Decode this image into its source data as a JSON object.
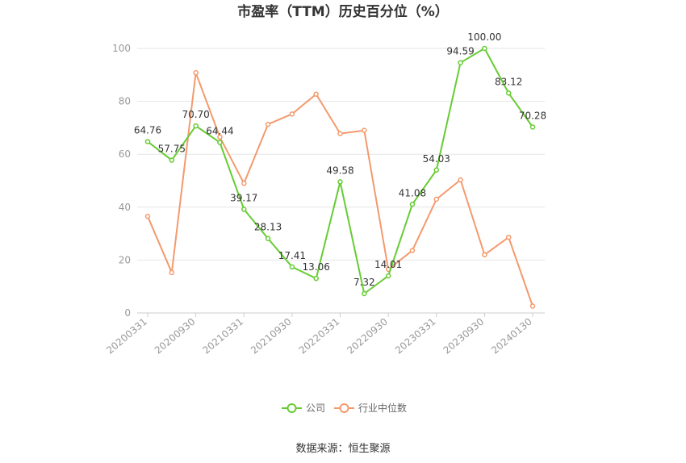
{
  "chart_data": {
    "type": "line",
    "title": "市盈率（TTM）历史百分位（%）",
    "xlabel": "",
    "ylabel": "",
    "ylim": [
      0,
      100
    ],
    "yticks": [
      0,
      20,
      40,
      60,
      80,
      100
    ],
    "x": [
      "20200331",
      "20200630",
      "20200930",
      "20201231",
      "20210331",
      "20210630",
      "20210930",
      "20211231",
      "20220331",
      "20220630",
      "20220930",
      "20221231",
      "20230331",
      "20230630",
      "20230930",
      "20231231",
      "20240130"
    ],
    "xticks_shown": [
      "20200331",
      "20200930",
      "20210331",
      "20210930",
      "20220331",
      "20220930",
      "20230331",
      "20230930",
      "20240130"
    ],
    "grid": true,
    "legend_position": "bottom",
    "series": [
      {
        "name": "公司",
        "color": "#66cc33",
        "values": [
          64.76,
          57.75,
          70.7,
          64.44,
          39.17,
          28.13,
          17.41,
          13.06,
          49.58,
          7.32,
          14.01,
          41.08,
          54.03,
          94.59,
          100.0,
          83.12,
          70.28
        ],
        "labels": [
          "64.76",
          "57.75",
          "70.70",
          "64.44",
          "39.17",
          "28.13",
          "17.41",
          "13.06",
          "49.58",
          "7.32",
          "14.01",
          "41.08",
          "54.03",
          "94.59",
          "100.00",
          "83.12",
          "70.28"
        ]
      },
      {
        "name": "行业中位数",
        "color": "#f39a6e",
        "values": [
          36.5,
          15.3,
          90.8,
          66.5,
          49.0,
          71.3,
          75.2,
          82.7,
          67.8,
          69.0,
          16.5,
          23.6,
          43.0,
          50.3,
          22.0,
          28.6,
          2.6
        ]
      }
    ],
    "source": "数据来源：恒生聚源"
  }
}
